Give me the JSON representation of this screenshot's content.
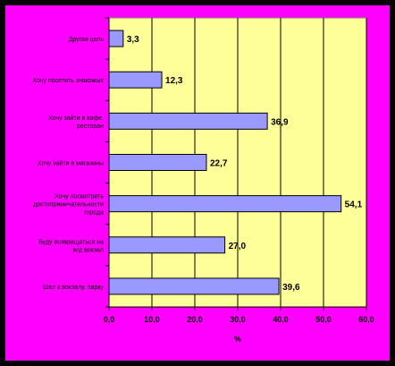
{
  "chart_data": {
    "type": "bar",
    "orientation": "horizontal",
    "categories": [
      [
        "Другая цель"
      ],
      [
        "Хочу посетить знакомых"
      ],
      [
        "Хочу зайти в кафе,",
        "ресторан"
      ],
      [
        "Хочу зайти в магазины"
      ],
      [
        "Хочу посмотреть",
        "достопримечательности",
        "города"
      ],
      [
        "Буду возвращаться на",
        "ж/д вокзал"
      ],
      [
        "Шел к вокзалу, парку"
      ]
    ],
    "values": [
      3.3,
      12.3,
      36.9,
      22.7,
      54.1,
      27.0,
      39.6
    ],
    "value_labels": [
      "3,3",
      "12,3",
      "36,9",
      "22,7",
      "54,1",
      "27,0",
      "39,6"
    ],
    "xlim": [
      0,
      60
    ],
    "xticks": [
      "0,0",
      "10,0",
      "20,0",
      "30,0",
      "40,0",
      "50,0",
      "60,0"
    ],
    "xlabel": "%",
    "ylabel": "",
    "title": "",
    "grid": "vertical",
    "legend": "none",
    "colors": {
      "background": "#ff00ff",
      "plot_area": "#ffff99",
      "bar_fill": "#9999ff",
      "bar_stroke": "#000000",
      "gridline": "#000000",
      "outer_frame": "#000000"
    }
  }
}
